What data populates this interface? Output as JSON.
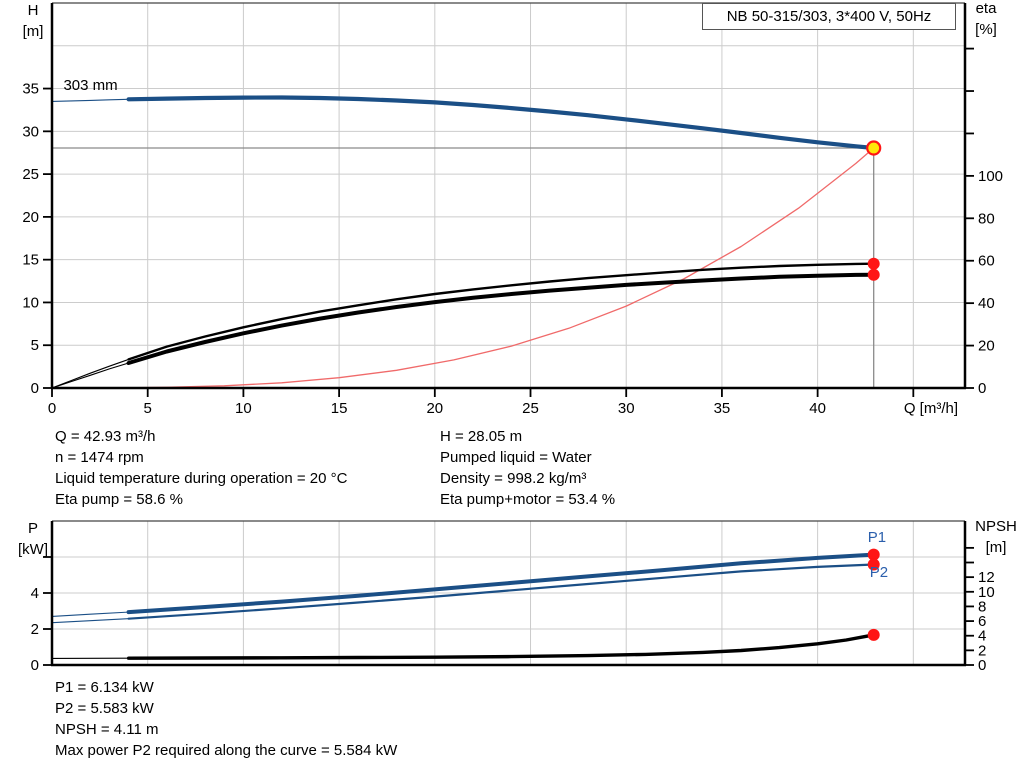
{
  "title_box": "NB 50-315/303, 3*400 V, 50Hz",
  "colors": {
    "curve_blue": "#1b4f86",
    "label_blue": "#2b5fac",
    "black": "#000000",
    "red_dot": "#ff1515",
    "system_red": "#f06a6a",
    "duty_yellow": "#ffe60a",
    "grid": "#cccccc",
    "ref_gray": "#8a8a8a",
    "axis": "#000000",
    "frame_top": "#444444"
  },
  "info_left": [
    "Q = 42.93 m³/h",
    "n = 1474 rpm",
    "Liquid temperature during operation = 20 °C",
    "Eta pump = 58.6 %"
  ],
  "info_right": [
    "H = 28.05 m",
    "Pumped liquid = Water",
    "Density = 998.2 kg/m³",
    "Eta pump+motor = 53.4 %"
  ],
  "info_bottom": [
    "P1 = 6.134 kW",
    "P2 = 5.583 kW",
    "NPSH = 4.11 m",
    "Max power P2 required along the curve = 5.584 kW"
  ],
  "duty_point": {
    "q_m3h": 42.93,
    "h_m": 28.05,
    "eta_pump_pct": 58.6,
    "eta_pump_motor_pct": 53.4,
    "p1_kw": 6.134,
    "p2_kw": 5.583,
    "npsh_m": 4.11
  },
  "chart_data": [
    {
      "type": "line",
      "id": "qh-eta-chart",
      "title": "NB 50-315/303, 3*400 V, 50Hz",
      "x_axis": {
        "label": "Q [m³/h]",
        "ticks": [
          0,
          5,
          10,
          15,
          20,
          25,
          30,
          35,
          40
        ],
        "unlabeled_ticks": [
          45
        ],
        "range": [
          0,
          47.7
        ],
        "show_labels": true
      },
      "y_left": {
        "label_lines": [
          "H",
          "[m]"
        ],
        "ticks": [
          0,
          5,
          10,
          15,
          20,
          25,
          30,
          35
        ],
        "unlabeled_ticks": [],
        "range": [
          0,
          45
        ]
      },
      "y_right": {
        "label_lines": [
          "eta",
          "[%]"
        ],
        "ticks": [
          0,
          20,
          40,
          60,
          80,
          100
        ],
        "unlabeled_ticks": [
          120,
          140,
          160
        ],
        "range": [
          0,
          181.5
        ]
      },
      "grid": {
        "x_values": [
          5,
          10,
          15,
          20,
          25,
          30,
          35,
          40,
          45
        ],
        "y_values": [
          5,
          10,
          15,
          20,
          25,
          30,
          35,
          40
        ]
      },
      "ref_lines": [
        {
          "type": "h",
          "axis": "left",
          "value": 28.05,
          "q_from": 0,
          "q_to": 42.93
        },
        {
          "type": "v",
          "q": 42.93,
          "axis": "left",
          "v_from": 0,
          "v_to": 28.05
        }
      ],
      "series": [
        {
          "name": "system-curve",
          "axis": "left",
          "color": "system_red",
          "width": 1.3,
          "points": [
            [
              0,
              0
            ],
            [
              3,
              0.01
            ],
            [
              6,
              0.08
            ],
            [
              9,
              0.26
            ],
            [
              12,
              0.61
            ],
            [
              15,
              1.2
            ],
            [
              18,
              2.07
            ],
            [
              21,
              3.28
            ],
            [
              24,
              4.9
            ],
            [
              27,
              6.98
            ],
            [
              30,
              9.57
            ],
            [
              33,
              12.74
            ],
            [
              36,
              16.54
            ],
            [
              39,
              21.02
            ],
            [
              42,
              26.25
            ],
            [
              42.93,
              28.05
            ]
          ]
        },
        {
          "name": "eta-pump-curve-min-flow",
          "axis": "right",
          "color": "black",
          "width": 1.1,
          "points": [
            [
              0,
              0
            ],
            [
              1,
              3.5
            ],
            [
              2,
              7
            ],
            [
              3,
              10.3
            ],
            [
              4,
              13.5
            ],
            [
              5,
              16.6
            ]
          ]
        },
        {
          "name": "eta-pump-motor-curve-min-flow",
          "axis": "right",
          "color": "black",
          "width": 1.1,
          "points": [
            [
              0,
              0
            ],
            [
              1,
              3
            ],
            [
              2,
              6
            ],
            [
              3,
              9
            ],
            [
              4,
              11.8
            ],
            [
              5,
              14.6
            ]
          ]
        },
        {
          "name": "eta-pump-curve",
          "axis": "right",
          "color": "black",
          "width": 2.4,
          "points": [
            [
              4,
              13.5
            ],
            [
              6,
              19.5
            ],
            [
              8,
              24.3
            ],
            [
              10,
              28.6
            ],
            [
              12,
              32.5
            ],
            [
              14,
              36
            ],
            [
              16,
              39
            ],
            [
              18,
              41.8
            ],
            [
              20,
              44.3
            ],
            [
              22,
              46.5
            ],
            [
              24,
              48.4
            ],
            [
              26,
              50.2
            ],
            [
              28,
              51.8
            ],
            [
              30,
              53.2
            ],
            [
              32,
              54.5
            ],
            [
              34,
              55.7
            ],
            [
              36,
              56.7
            ],
            [
              38,
              57.5
            ],
            [
              40,
              58.1
            ],
            [
              42,
              58.5
            ],
            [
              42.93,
              58.6
            ]
          ]
        },
        {
          "name": "eta-pump-motor-curve",
          "axis": "right",
          "color": "black",
          "width": 4,
          "points": [
            [
              4,
              11.8
            ],
            [
              6,
              17.2
            ],
            [
              8,
              21.7
            ],
            [
              10,
              25.8
            ],
            [
              12,
              29.4
            ],
            [
              14,
              32.7
            ],
            [
              16,
              35.6
            ],
            [
              18,
              38.2
            ],
            [
              20,
              40.5
            ],
            [
              22,
              42.5
            ],
            [
              24,
              44.3
            ],
            [
              26,
              45.9
            ],
            [
              28,
              47.3
            ],
            [
              30,
              48.6
            ],
            [
              32,
              49.7
            ],
            [
              34,
              50.7
            ],
            [
              36,
              51.6
            ],
            [
              38,
              52.4
            ],
            [
              40,
              52.9
            ],
            [
              42,
              53.3
            ],
            [
              42.93,
              53.4
            ]
          ]
        },
        {
          "name": "qh-curve-min-flow",
          "axis": "left",
          "color": "curve_blue",
          "width": 1.1,
          "points": [
            [
              0,
              33.5
            ],
            [
              1,
              33.56
            ],
            [
              2,
              33.62
            ],
            [
              3,
              33.68
            ],
            [
              4,
              33.74
            ],
            [
              5,
              33.79
            ]
          ]
        },
        {
          "name": "qh-curve",
          "axis": "left",
          "color": "curve_blue",
          "width": 4.2,
          "points": [
            [
              4,
              33.74
            ],
            [
              6,
              33.83
            ],
            [
              8,
              33.9
            ],
            [
              10,
              33.94
            ],
            [
              12,
              33.95
            ],
            [
              14,
              33.9
            ],
            [
              16,
              33.78
            ],
            [
              18,
              33.6
            ],
            [
              20,
              33.38
            ],
            [
              22,
              33.08
            ],
            [
              24,
              32.72
            ],
            [
              26,
              32.32
            ],
            [
              28,
              31.88
            ],
            [
              30,
              31.4
            ],
            [
              32,
              30.88
            ],
            [
              34,
              30.35
            ],
            [
              36,
              29.8
            ],
            [
              38,
              29.25
            ],
            [
              40,
              28.72
            ],
            [
              42,
              28.25
            ],
            [
              42.93,
              28.05
            ]
          ]
        }
      ],
      "markers": [
        {
          "name": "eta-pump-end-dot",
          "q": 42.93,
          "value": 58.6,
          "axis": "right",
          "style": "dot"
        },
        {
          "name": "eta-pump-motor-end-dot",
          "q": 42.93,
          "value": 53.4,
          "axis": "right",
          "style": "dot"
        },
        {
          "name": "duty-point",
          "q": 42.93,
          "value": 28.05,
          "axis": "left",
          "style": "duty"
        }
      ],
      "annotations": [
        {
          "text": "303 mm",
          "q": 0.6,
          "value": 34.85,
          "axis": "left",
          "anchor": "start",
          "color": "black"
        }
      ]
    },
    {
      "type": "line",
      "id": "power-npsh-chart",
      "x_axis": {
        "label": "",
        "ticks": [],
        "unlabeled_ticks": [],
        "range": [
          0,
          47.7
        ],
        "show_labels": false
      },
      "y_left": {
        "label_lines": [
          "P",
          "[kW]"
        ],
        "ticks": [
          0,
          2,
          4
        ],
        "unlabeled_ticks": [
          6
        ],
        "range": [
          0,
          8
        ]
      },
      "y_right": {
        "label_lines": [
          "NPSH",
          "[m]"
        ],
        "ticks": [
          0,
          2,
          4,
          6,
          8,
          10,
          12
        ],
        "unlabeled_ticks": [
          14,
          16
        ],
        "range": [
          0,
          19.67
        ]
      },
      "grid": {
        "x_values": [
          5,
          10,
          15,
          20,
          25,
          30,
          35,
          40,
          45
        ],
        "y_values": [
          2,
          4,
          6
        ]
      },
      "ref_lines": [],
      "series": [
        {
          "name": "npsh-curve-min-flow",
          "axis": "right",
          "color": "black",
          "width": 1.1,
          "points": [
            [
              0,
              0.9
            ],
            [
              2,
              0.91
            ],
            [
              4,
              0.93
            ],
            [
              5,
              0.94
            ]
          ]
        },
        {
          "name": "npsh-curve",
          "axis": "right",
          "color": "black",
          "width": 3.4,
          "points": [
            [
              4,
              0.93
            ],
            [
              8,
              0.96
            ],
            [
              12,
              0.99
            ],
            [
              16,
              1.02
            ],
            [
              20,
              1.07
            ],
            [
              24,
              1.15
            ],
            [
              28,
              1.28
            ],
            [
              31,
              1.45
            ],
            [
              34,
              1.72
            ],
            [
              36,
              1.98
            ],
            [
              38,
              2.38
            ],
            [
              40,
              2.9
            ],
            [
              41.5,
              3.42
            ],
            [
              42.93,
              4.11
            ]
          ]
        },
        {
          "name": "p2-curve-min-flow",
          "axis": "left",
          "color": "curve_blue",
          "width": 1.1,
          "points": [
            [
              0,
              2.35
            ],
            [
              2,
              2.46
            ],
            [
              4,
              2.57
            ],
            [
              5,
              2.63
            ]
          ]
        },
        {
          "name": "p2-curve",
          "axis": "left",
          "color": "curve_blue",
          "width": 2.2,
          "points": [
            [
              4,
              2.57
            ],
            [
              8,
              2.85
            ],
            [
              12,
              3.15
            ],
            [
              16,
              3.47
            ],
            [
              20,
              3.8
            ],
            [
              24,
              4.15
            ],
            [
              28,
              4.5
            ],
            [
              32,
              4.85
            ],
            [
              36,
              5.2
            ],
            [
              40,
              5.45
            ],
            [
              42.93,
              5.583
            ]
          ]
        },
        {
          "name": "p1-curve-min-flow",
          "axis": "left",
          "color": "curve_blue",
          "width": 1.1,
          "points": [
            [
              0,
              2.7
            ],
            [
              2,
              2.82
            ],
            [
              4,
              2.94
            ],
            [
              5,
              3.0
            ]
          ]
        },
        {
          "name": "p1-curve",
          "axis": "left",
          "color": "curve_blue",
          "width": 4,
          "points": [
            [
              4,
              2.94
            ],
            [
              8,
              3.22
            ],
            [
              12,
              3.52
            ],
            [
              16,
              3.85
            ],
            [
              20,
              4.2
            ],
            [
              24,
              4.56
            ],
            [
              28,
              4.92
            ],
            [
              32,
              5.28
            ],
            [
              36,
              5.65
            ],
            [
              40,
              5.95
            ],
            [
              42.93,
              6.134
            ]
          ]
        }
      ],
      "markers": [
        {
          "name": "p1-end-dot",
          "q": 42.93,
          "value": 6.134,
          "axis": "left",
          "style": "dot"
        },
        {
          "name": "p2-end-dot",
          "q": 42.93,
          "value": 5.583,
          "axis": "left",
          "style": "dot"
        },
        {
          "name": "npsh-end-dot",
          "q": 42.93,
          "value": 4.11,
          "axis": "right",
          "style": "dot"
        }
      ],
      "annotations": [
        {
          "text": "P1",
          "q": 43.1,
          "value": 6.83,
          "axis": "left",
          "anchor": "middle",
          "color": "label_blue"
        },
        {
          "text": "P2",
          "q": 43.2,
          "value": 4.89,
          "axis": "left",
          "anchor": "middle",
          "color": "label_blue"
        }
      ]
    }
  ]
}
